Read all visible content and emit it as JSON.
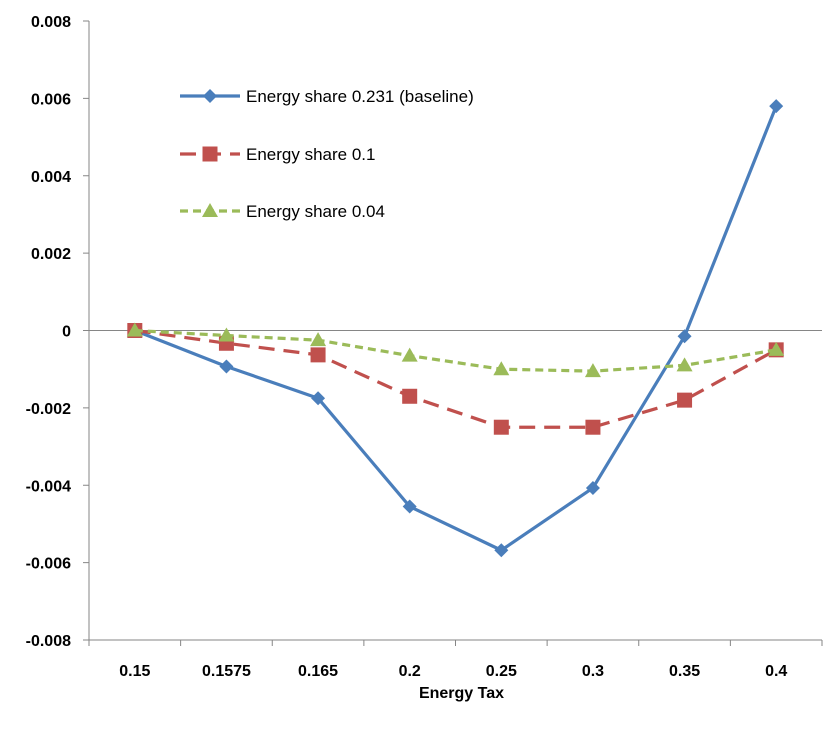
{
  "chart_data": {
    "type": "line",
    "title": "",
    "xlabel": "Energy Tax",
    "ylabel": "",
    "categories": [
      "0.15",
      "0.1575",
      "0.165",
      "0.2",
      "0.25",
      "0.3",
      "0.35",
      "0.4"
    ],
    "ylim": [
      -0.008,
      0.008
    ],
    "yticks": [
      "0.008",
      "0.006",
      "0.004",
      "0.002",
      "0",
      "-0.002",
      "-0.004",
      "-0.006",
      "-0.008"
    ],
    "yticks_values": [
      0.008,
      0.006,
      0.004,
      0.002,
      0,
      -0.002,
      -0.004,
      -0.006,
      -0.008
    ],
    "grid": false,
    "legend_position": "top-left inside plot",
    "series": [
      {
        "name": "Energy share 0.231 (baseline)",
        "color": "#4a7ebb",
        "marker": "diamond",
        "dash": "solid",
        "values": [
          0.0,
          -0.00093,
          -0.00175,
          -0.00455,
          -0.00568,
          -0.00407,
          -0.00015,
          0.0058
        ]
      },
      {
        "name": "Energy share 0.1",
        "color": "#c0504d",
        "marker": "square",
        "dash": "dashed",
        "values": [
          0.0,
          -0.00033,
          -0.00063,
          -0.0017,
          -0.0025,
          -0.0025,
          -0.0018,
          -0.0005
        ]
      },
      {
        "name": "Energy share 0.04",
        "color": "#9bbb59",
        "marker": "triangle",
        "dash": "dotted",
        "values": [
          0.0,
          -0.00013,
          -0.00025,
          -0.00065,
          -0.001,
          -0.00105,
          -0.0009,
          -0.0005
        ]
      }
    ]
  }
}
